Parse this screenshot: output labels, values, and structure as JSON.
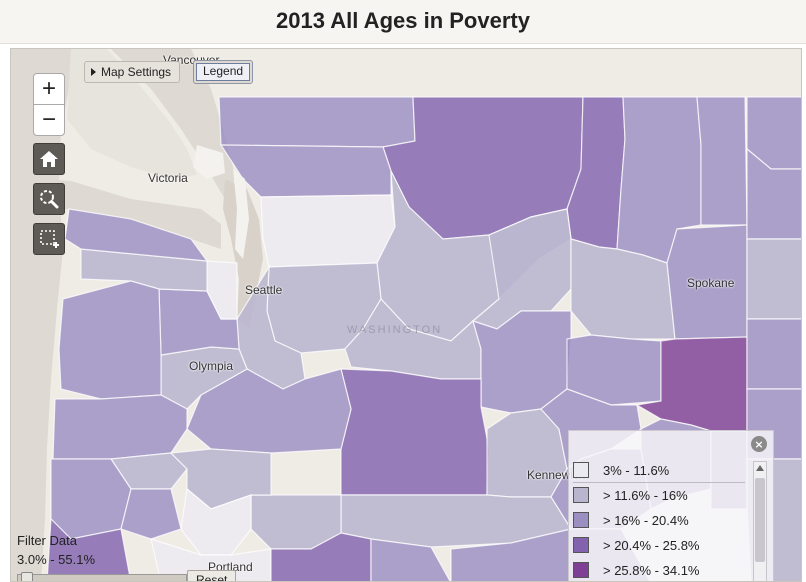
{
  "title": "2013 All Ages in Poverty",
  "map_controls": {
    "map_settings_label": "Map Settings",
    "legend_label": "Legend",
    "zoom_in": "+",
    "zoom_out": "−"
  },
  "city_labels": [
    "Vancouver",
    "Victoria",
    "Seattle",
    "Olympia",
    "Spokane",
    "Kennewick",
    "Portland"
  ],
  "watermark": "WASHINGTON",
  "filter": {
    "title": "Filter Data",
    "range": "3.0% - 55.1%",
    "reset_label": "Reset"
  },
  "legend": {
    "close_icon": "close-icon",
    "items": [
      {
        "label": "3% - 11.6%",
        "color": "#eceaf1"
      },
      {
        "label": "> 11.6% - 16%",
        "color": "#b9b5cf"
      },
      {
        "label": "> 16% - 20.4%",
        "color": "#9b8fc2"
      },
      {
        "label": "> 20.4% - 25.8%",
        "color": "#8363ad"
      },
      {
        "label": "> 25.8% - 34.1%",
        "color": "#7f3f95"
      }
    ]
  },
  "colors": {
    "water": "#ded9d2",
    "land": "#efece6"
  },
  "icons": {
    "home": "home-icon",
    "zoom_tool": "magnifier-icon",
    "select_tool": "select-box-icon"
  }
}
